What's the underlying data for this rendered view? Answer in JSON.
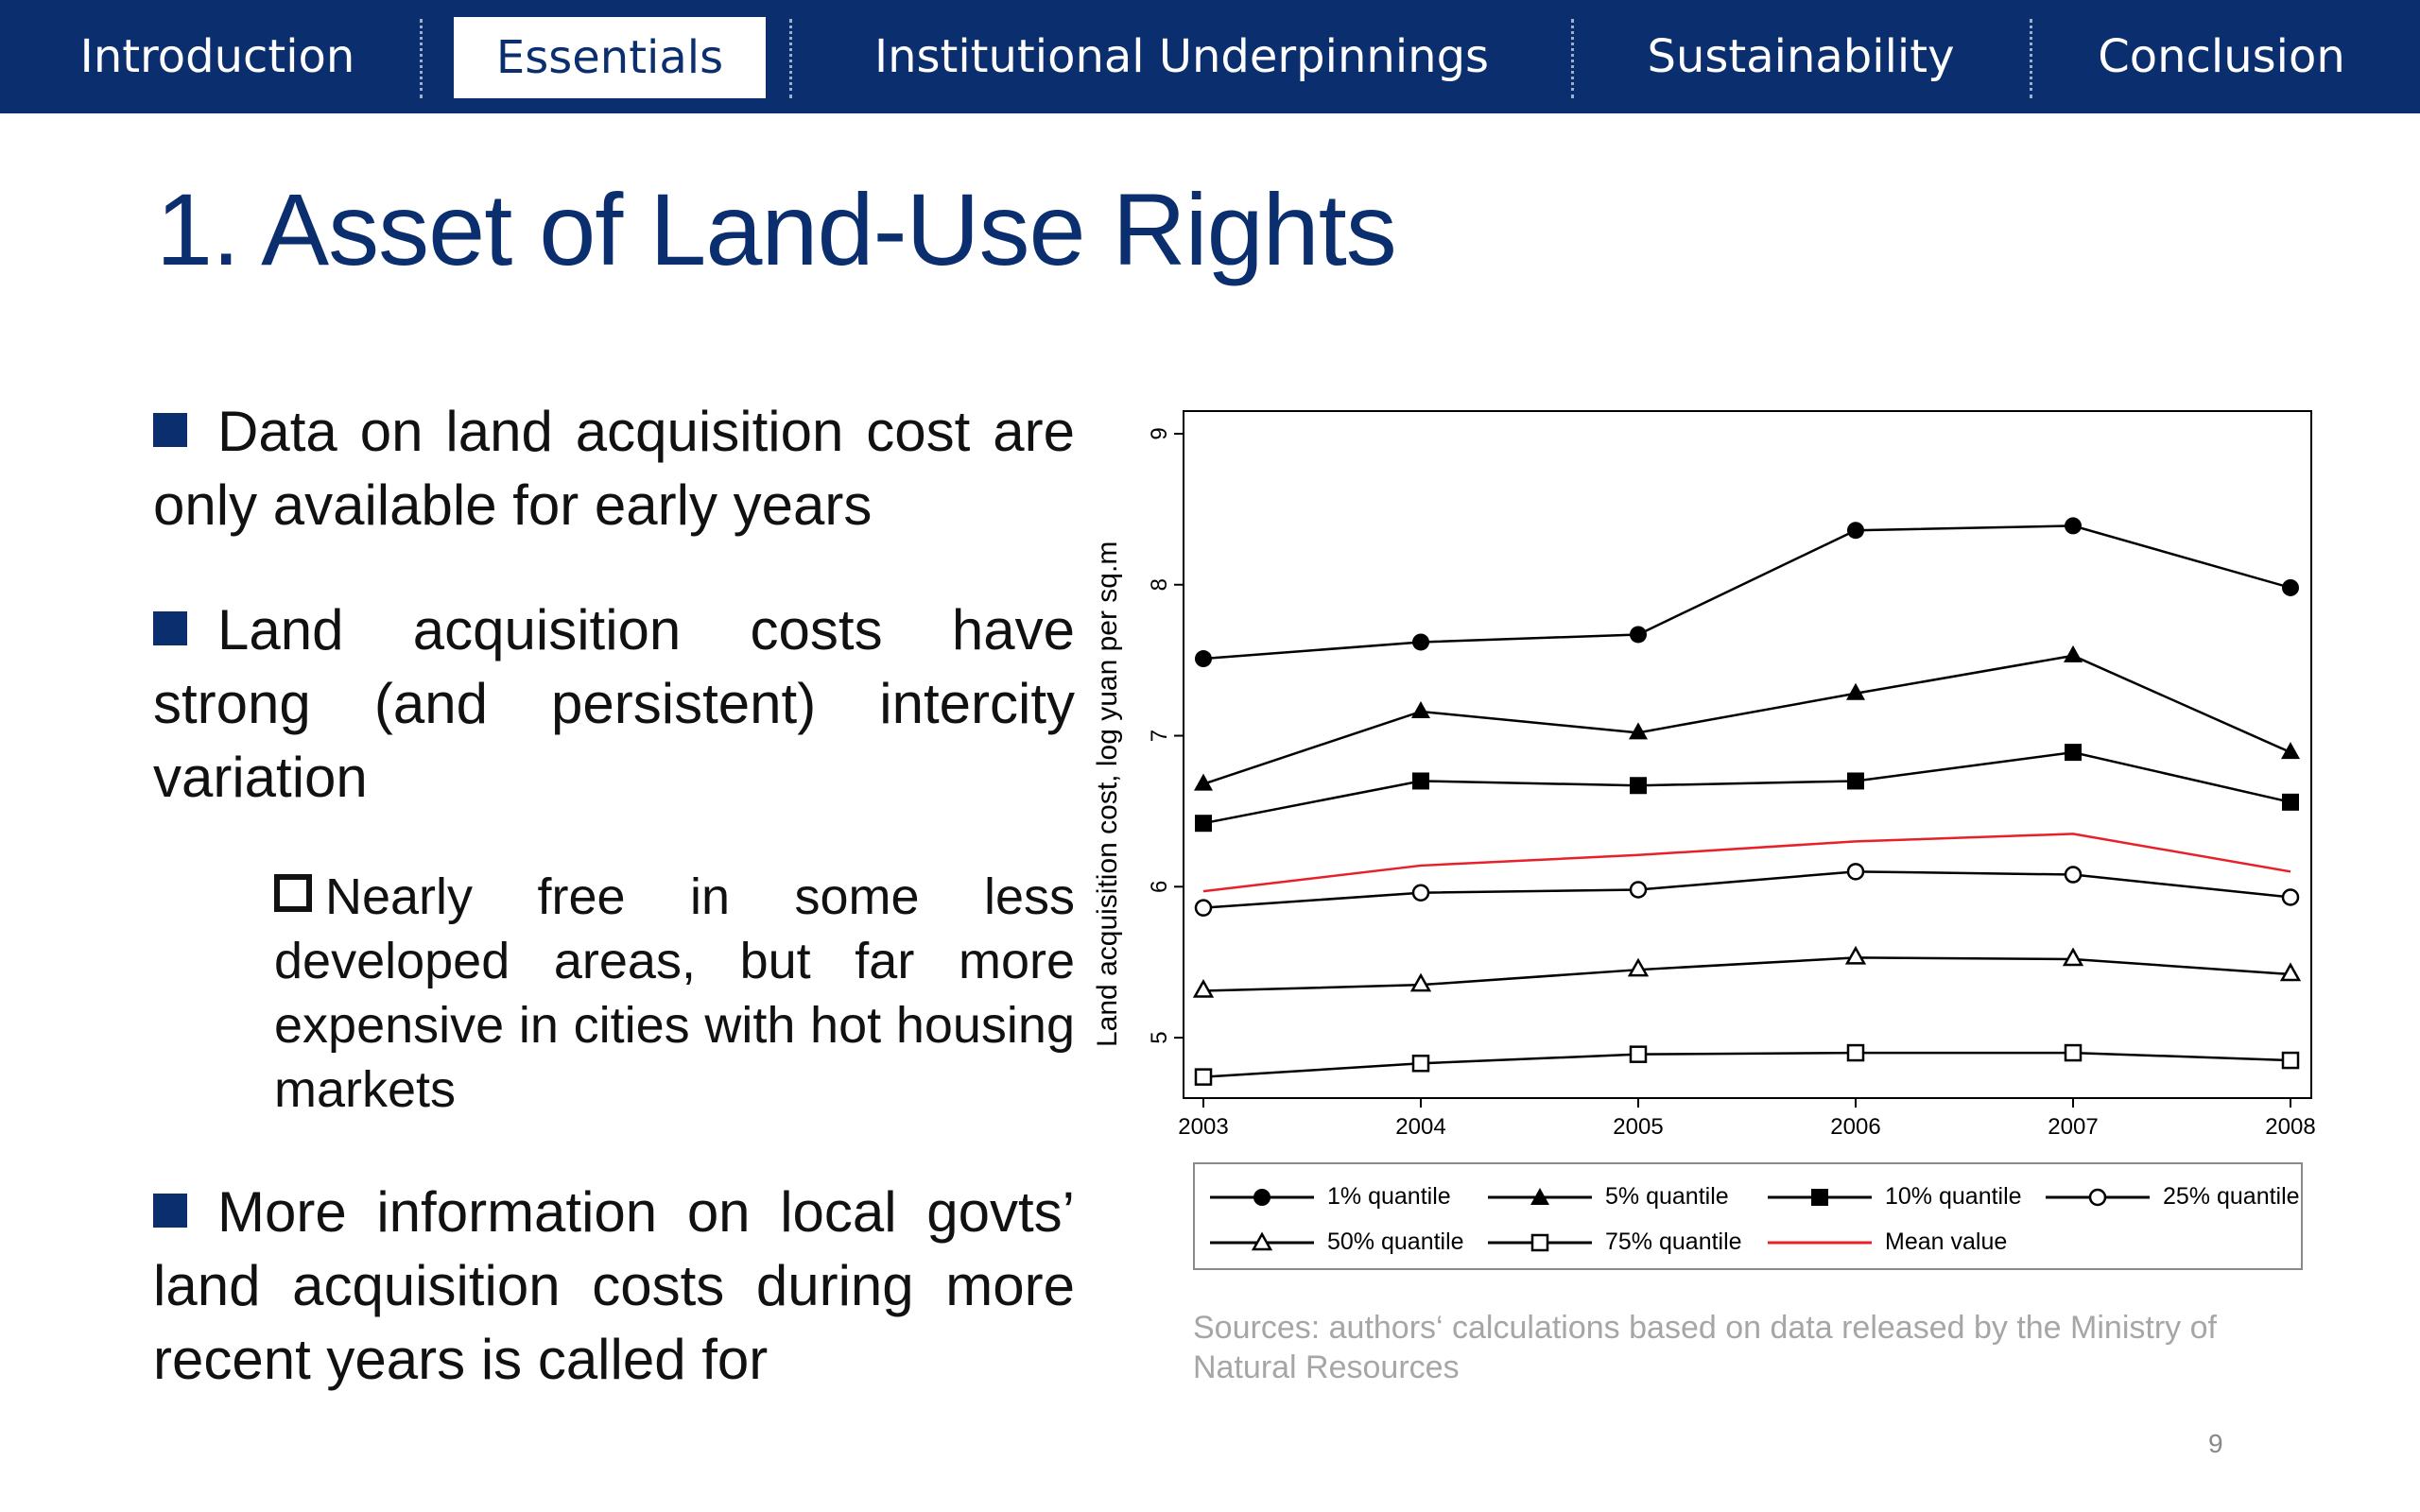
{
  "nav": {
    "tabs": [
      {
        "label": "Introduction",
        "active": false
      },
      {
        "label": "Essentials",
        "active": true
      },
      {
        "label": "Institutional Underpinnings",
        "active": false
      },
      {
        "label": "Sustainability",
        "active": false
      },
      {
        "label": "Conclusion",
        "active": false
      }
    ]
  },
  "title": "1. Asset of Land-Use Rights",
  "bullets": [
    "Data on land acquisition cost are only available for early years",
    "Land acquisition costs have strong (and persistent) intercity variation",
    "Nearly free in some less developed areas, but far more expensive in cities with hot housing markets",
    "More information on local govts’ land acquisition costs during more recent years is called for"
  ],
  "source_note": "Sources: authors‘ calculations based on data released by the Ministry of Natural Resources",
  "page_number": "9",
  "colors": {
    "brand": "#0b2e6e",
    "mean_line": "#e8202a",
    "series": "#000000"
  },
  "chart_data": {
    "type": "line",
    "title": "",
    "xlabel": "",
    "ylabel": "Land acquisition cost, log yuan per sq.m",
    "x": [
      2003,
      2004,
      2005,
      2006,
      2007,
      2008
    ],
    "ylim": [
      4.6,
      9.15
    ],
    "yticks": [
      5,
      6,
      7,
      8,
      9
    ],
    "grid": false,
    "legend_position": "bottom",
    "series": [
      {
        "name": "1% quantile",
        "marker": "filled-circle",
        "values": [
          7.51,
          7.62,
          7.67,
          8.36,
          8.39,
          7.98
        ]
      },
      {
        "name": "5% quantile",
        "marker": "filled-triangle",
        "values": [
          6.68,
          7.16,
          7.02,
          7.28,
          7.53,
          6.89
        ]
      },
      {
        "name": "10% quantile",
        "marker": "filled-square",
        "values": [
          6.42,
          6.7,
          6.67,
          6.7,
          6.89,
          6.56
        ]
      },
      {
        "name": "25% quantile",
        "marker": "open-circle",
        "values": [
          5.86,
          5.96,
          5.98,
          6.1,
          6.08,
          5.93
        ]
      },
      {
        "name": "50% quantile",
        "marker": "open-triangle",
        "values": [
          5.31,
          5.35,
          5.45,
          5.53,
          5.52,
          5.42
        ]
      },
      {
        "name": "75% quantile",
        "marker": "open-square",
        "values": [
          4.74,
          4.83,
          4.89,
          4.9,
          4.9,
          4.85
        ]
      },
      {
        "name": "Mean value",
        "marker": "none",
        "color": "#e8202a",
        "values": [
          5.97,
          6.14,
          6.21,
          6.3,
          6.35,
          6.1
        ]
      }
    ]
  }
}
